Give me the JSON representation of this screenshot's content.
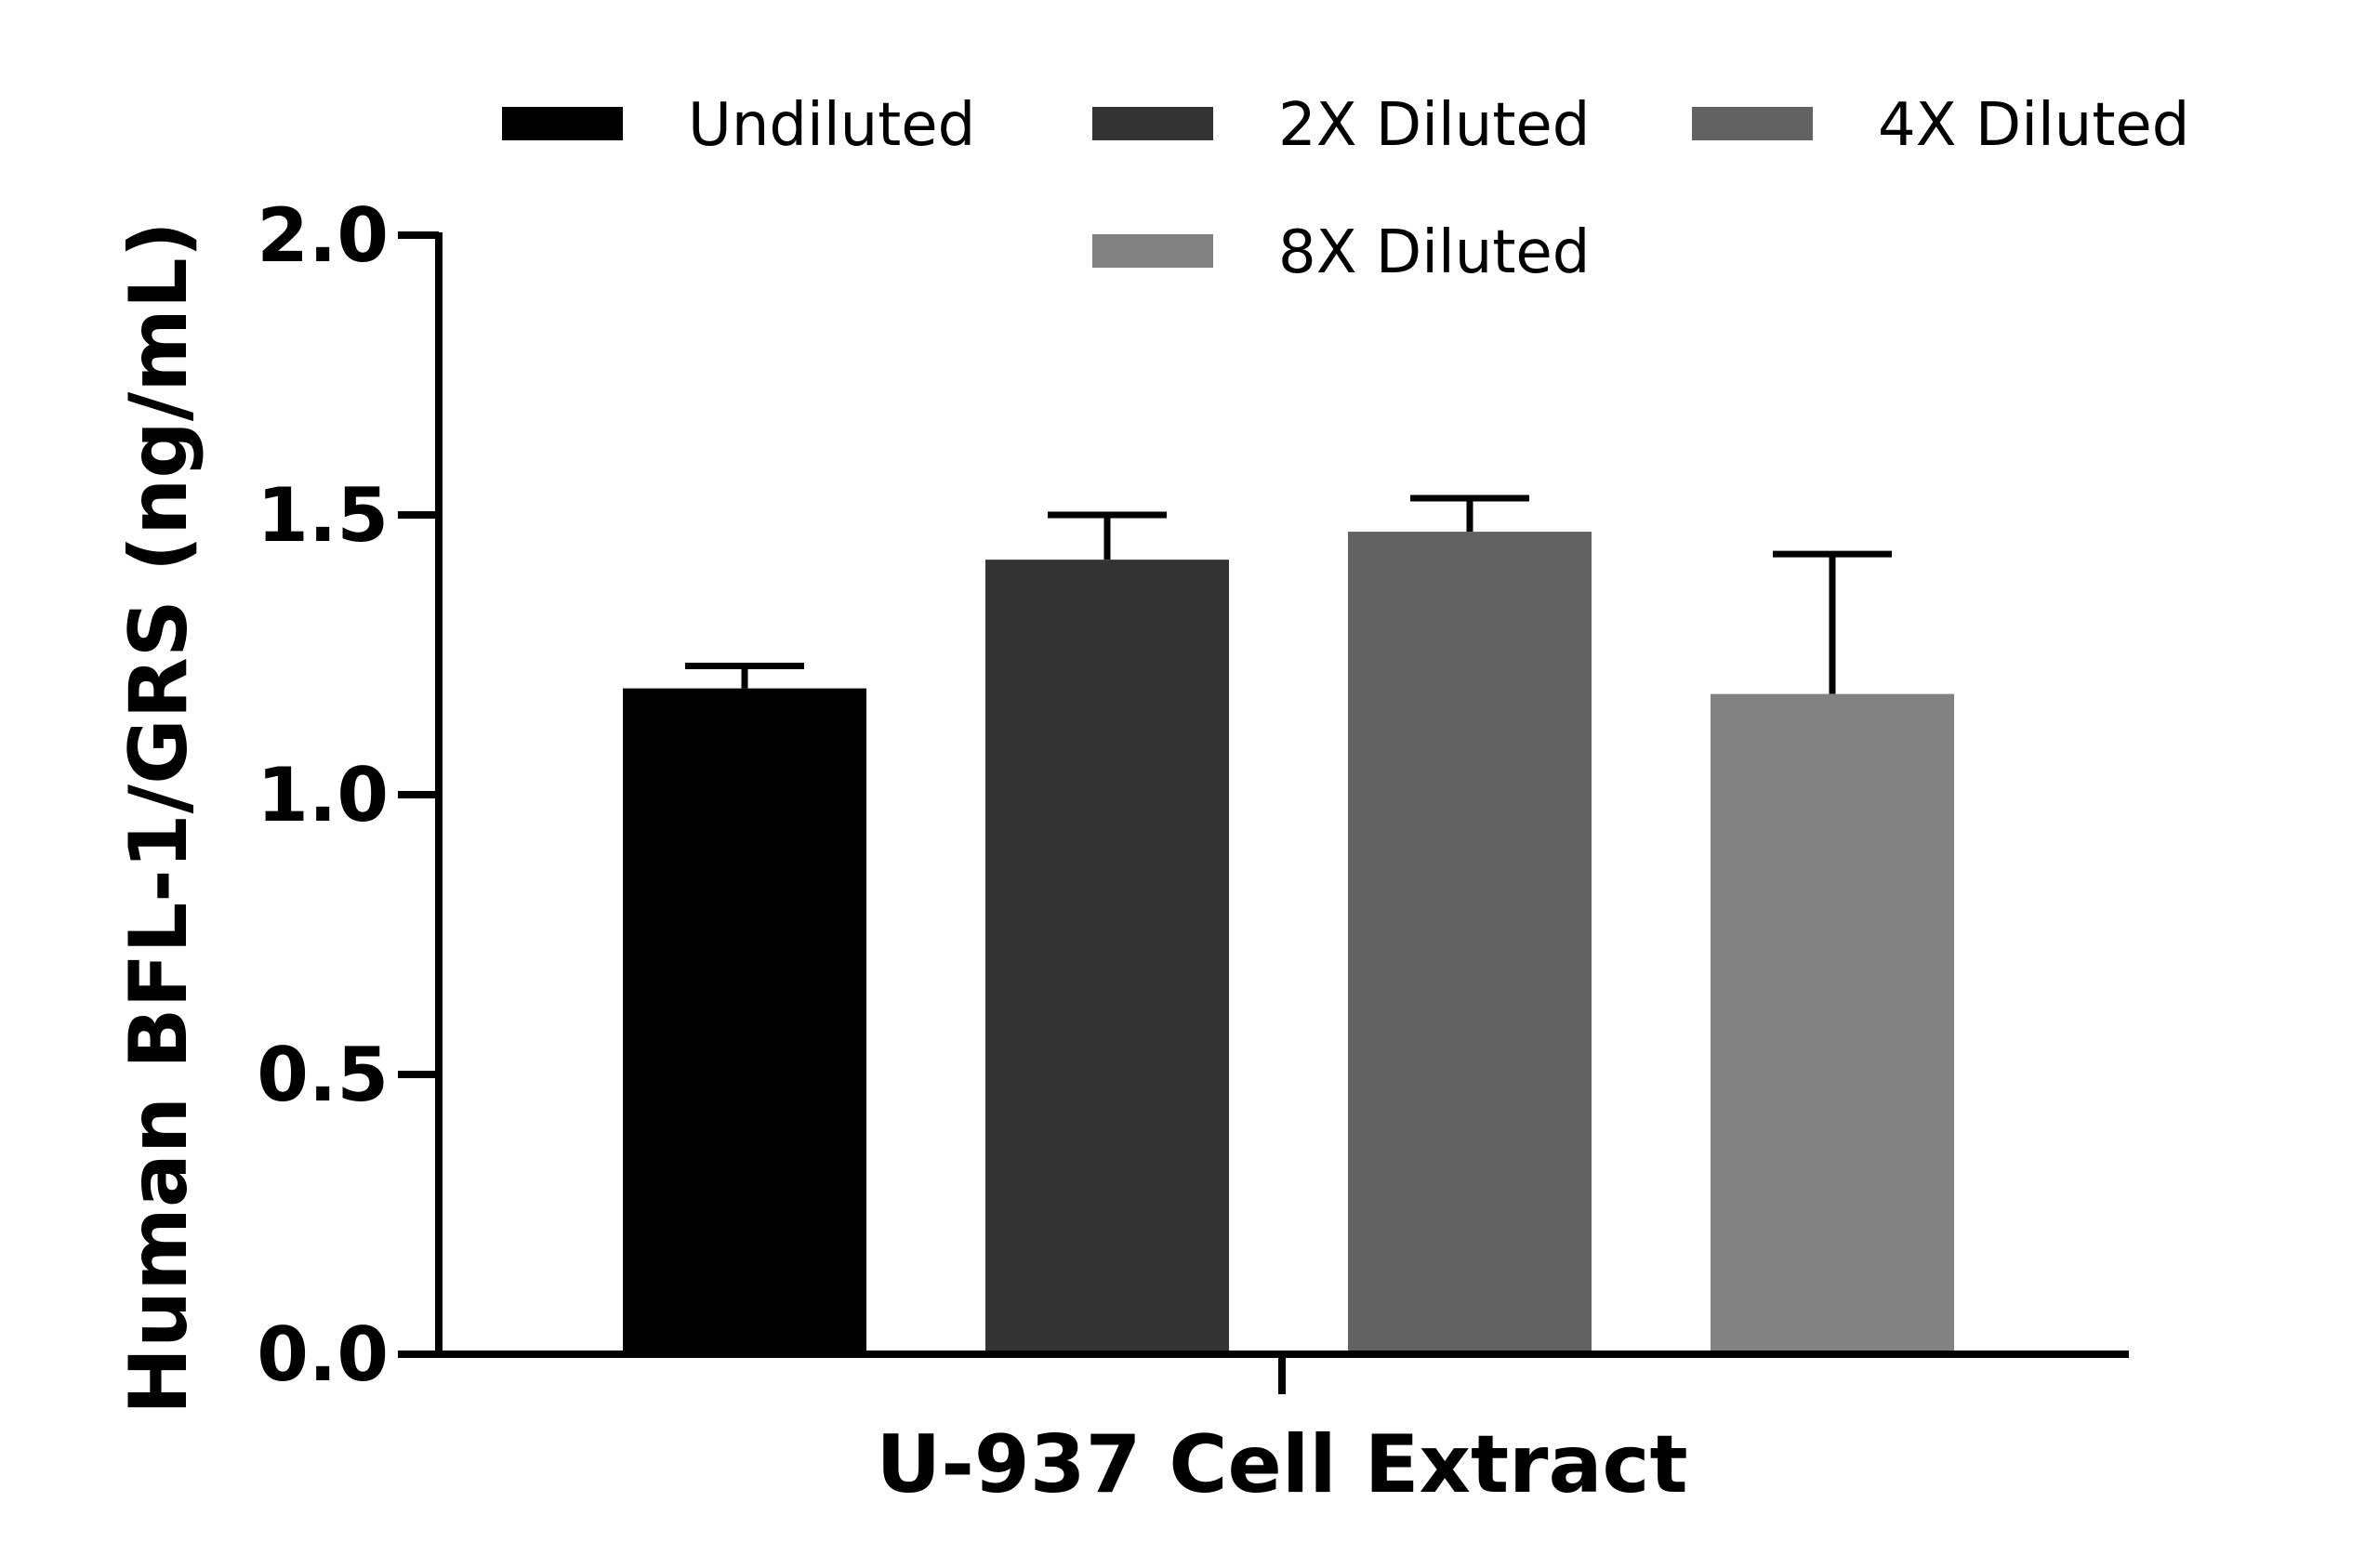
{
  "chart_data": {
    "type": "bar",
    "xlabel": "U-937 Cell Extract",
    "ylabel": "Human BFL-1/GRS (ng/mL)",
    "ylim": [
      0,
      2.0
    ],
    "yticks": [
      "0.0",
      "0.5",
      "1.0",
      "1.5",
      "2.0"
    ],
    "ytick_values": [
      0,
      0.5,
      1.0,
      1.5,
      2.0
    ],
    "grid": false,
    "legend_position": "top",
    "series": [
      {
        "name": "Undiluted",
        "value": 1.19,
        "error": 0.04,
        "color": "#000000"
      },
      {
        "name": "2X Diluted",
        "value": 1.42,
        "error": 0.08,
        "color": "#333333"
      },
      {
        "name": "4X Diluted",
        "value": 1.47,
        "error": 0.06,
        "color": "#626262"
      },
      {
        "name": "8X Diluted",
        "value": 1.18,
        "error": 0.25,
        "color": "#828282"
      }
    ]
  }
}
